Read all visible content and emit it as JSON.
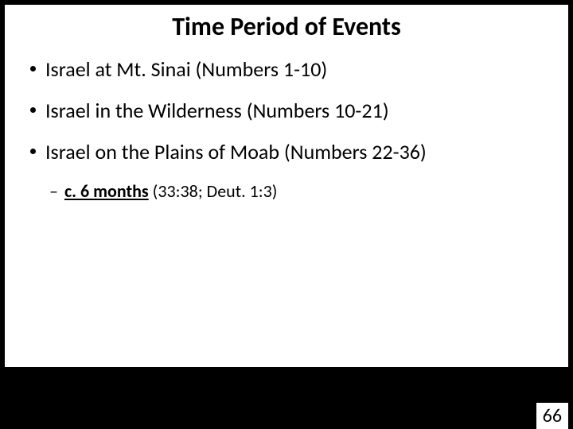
{
  "slide": {
    "title": "Time Period of Events",
    "title_fontsize": 32,
    "bullets": [
      {
        "text": "Israel at Mt. Sinai (Numbers 1-10)"
      },
      {
        "text": "Israel in the Wilderness (Numbers 10-21)"
      },
      {
        "text": "Israel on the Plains of Moab (Numbers 22-36)"
      }
    ],
    "bullet_fontsize": 26,
    "sub_bullet": {
      "dash": "–",
      "bold_underline": "c. 6 months",
      "rest": " (33:38; Deut. 1:3)"
    },
    "sub_fontsize": 22,
    "page_number": "66",
    "page_number_fontsize": 24,
    "colors": {
      "background": "#000000",
      "content_bg": "#ffffff",
      "text": "#000000"
    }
  }
}
